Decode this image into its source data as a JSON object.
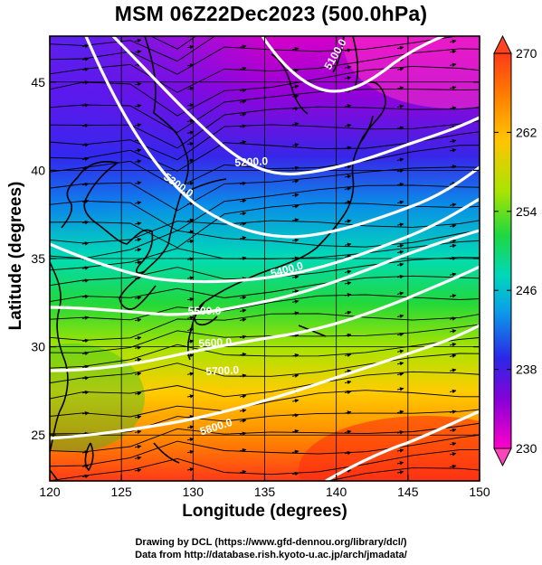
{
  "title": "MSM 06Z22Dec2023 (500.0hPa)",
  "map": {
    "xlabel": "Longitude (degrees)",
    "ylabel": "Latitude  (degrees)",
    "xlim": [
      120,
      150
    ],
    "ylim": [
      22.4,
      47.6
    ],
    "x_ticks": [
      "120",
      "125",
      "130",
      "135",
      "140",
      "145",
      "150"
    ],
    "y_ticks": [
      "25",
      "30",
      "35",
      "40",
      "45"
    ],
    "contour_labels": [
      "5100.0",
      "5200.0",
      "5300.0",
      "5400.0",
      "5500.0",
      "5600.0",
      "5700.0",
      "5800.0"
    ]
  },
  "colorbar": {
    "min": 230,
    "max": 270,
    "tick_labels": [
      "270",
      "262",
      "254",
      "246",
      "238",
      "230"
    ],
    "low_color": "#ff44bb",
    "high_color": "#ff4422"
  },
  "credits": {
    "line1": "Drawing by DCL (https://www.gfd-dennou.org/library/dcl/)",
    "line2": "Data from http://database.rish.kyoto-u.ac.jp/arch/jmadata/"
  }
}
